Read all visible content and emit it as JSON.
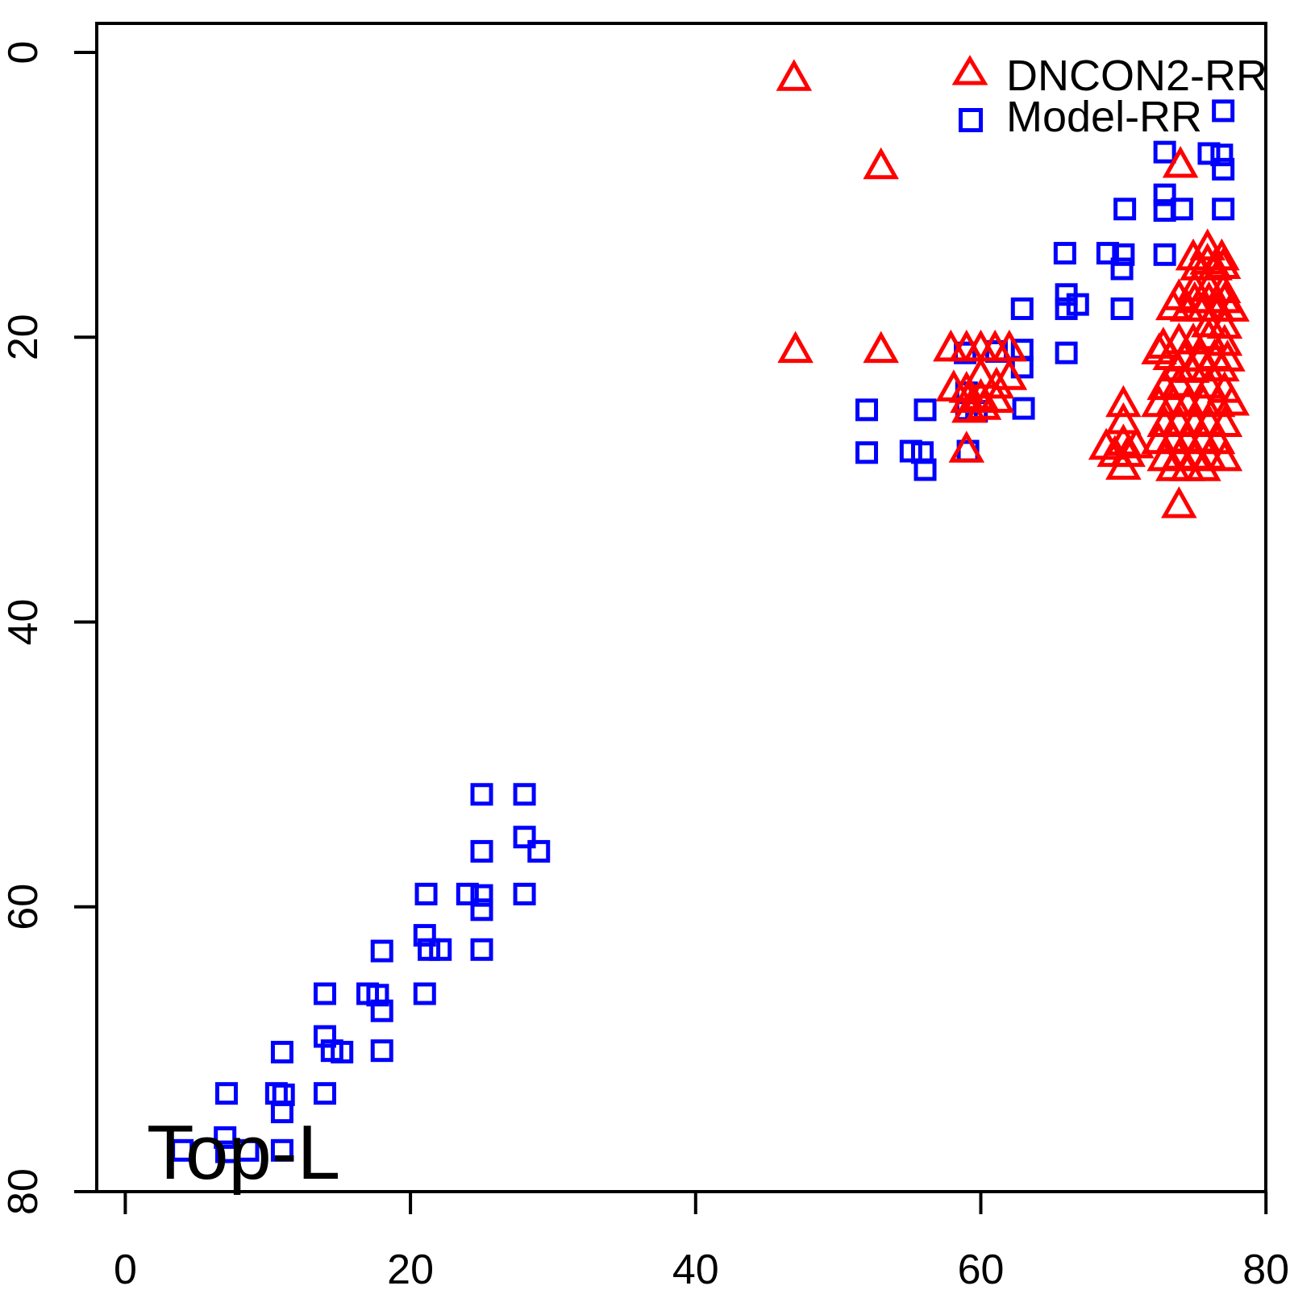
{
  "chart_data": {
    "type": "scatter",
    "title": "",
    "xlabel": "",
    "ylabel": "",
    "annotation": {
      "text": "Top-L"
    },
    "xlim": [
      0,
      80
    ],
    "ylim": [
      0,
      80
    ],
    "y_axis_reversed": true,
    "grid": false,
    "x_ticks": [
      "0",
      "20",
      "40",
      "60",
      "80"
    ],
    "x_tick_values": [
      0,
      20,
      40,
      60,
      80
    ],
    "y_ticks": [
      "0",
      "20",
      "40",
      "60",
      "80"
    ],
    "y_tick_values": [
      0,
      20,
      40,
      60,
      80
    ],
    "legend_position": "top-right",
    "series": [
      {
        "name": "DNCON2-RR",
        "marker": "open-triangle",
        "color": "#FF0000",
        "points": [
          [
            46.9,
            1.8
          ],
          [
            53.0,
            8.0
          ],
          [
            74.0,
            7.9
          ],
          [
            75.9,
            13.7
          ],
          [
            74.9,
            14.4
          ],
          [
            76.9,
            14.4
          ],
          [
            75.9,
            14.7
          ],
          [
            75.2,
            15.1
          ],
          [
            76.4,
            15.1
          ],
          [
            77.0,
            15.0
          ],
          [
            75.0,
            16.6
          ],
          [
            76.0,
            16.5
          ],
          [
            77.0,
            16.7
          ],
          [
            73.9,
            17.2
          ],
          [
            75.0,
            17.4
          ],
          [
            76.0,
            17.4
          ],
          [
            77.1,
            17.4
          ],
          [
            73.5,
            17.9
          ],
          [
            74.5,
            18.0
          ],
          [
            75.6,
            18.0
          ],
          [
            76.6,
            18.0
          ],
          [
            77.6,
            18.0
          ],
          [
            76.0,
            19.1
          ],
          [
            77.1,
            19.2
          ],
          [
            47.0,
            20.9
          ],
          [
            53.0,
            20.9
          ],
          [
            57.9,
            20.8
          ],
          [
            59.0,
            20.8
          ],
          [
            60.0,
            20.8
          ],
          [
            61.0,
            20.8
          ],
          [
            62.0,
            20.8
          ],
          [
            76.0,
            20.0
          ],
          [
            72.8,
            20.6
          ],
          [
            73.9,
            20.3
          ],
          [
            74.9,
            20.3
          ],
          [
            77.1,
            20.4
          ],
          [
            72.5,
            21.0
          ],
          [
            73.3,
            21.4
          ],
          [
            74.3,
            21.5
          ],
          [
            75.4,
            21.5
          ],
          [
            76.4,
            21.4
          ],
          [
            77.3,
            21.5
          ],
          [
            73.8,
            22.2
          ],
          [
            74.8,
            22.3
          ],
          [
            75.9,
            22.2
          ],
          [
            76.9,
            22.2
          ],
          [
            60.0,
            22.7
          ],
          [
            62.0,
            22.8
          ],
          [
            61.1,
            23.4
          ],
          [
            58.1,
            23.6
          ],
          [
            59.0,
            23.7
          ],
          [
            60.0,
            24.2
          ],
          [
            59.1,
            24.4
          ],
          [
            61.1,
            24.4
          ],
          [
            60.2,
            24.9
          ],
          [
            59.2,
            25.1
          ],
          [
            72.9,
            23.5
          ],
          [
            73.9,
            23.3
          ],
          [
            76.0,
            23.4
          ],
          [
            77.1,
            23.7
          ],
          [
            70.0,
            24.7
          ],
          [
            72.5,
            24.7
          ],
          [
            73.5,
            24.6
          ],
          [
            74.5,
            24.7
          ],
          [
            75.6,
            24.6
          ],
          [
            76.6,
            24.7
          ],
          [
            77.6,
            24.6
          ],
          [
            70.0,
            25.9
          ],
          [
            72.9,
            26.1
          ],
          [
            73.9,
            26.0
          ],
          [
            75.0,
            26.1
          ],
          [
            76.0,
            26.0
          ],
          [
            77.1,
            26.1
          ],
          [
            70.0,
            27.4
          ],
          [
            68.8,
            27.7
          ],
          [
            70.9,
            27.6
          ],
          [
            69.4,
            28.2
          ],
          [
            70.3,
            28.2
          ],
          [
            70.0,
            29.1
          ],
          [
            59.0,
            27.9
          ],
          [
            72.5,
            27.3
          ],
          [
            73.5,
            27.2
          ],
          [
            74.5,
            27.3
          ],
          [
            75.6,
            27.2
          ],
          [
            76.6,
            27.3
          ],
          [
            72.9,
            28.5
          ],
          [
            73.9,
            28.4
          ],
          [
            75.0,
            28.5
          ],
          [
            76.0,
            28.4
          ],
          [
            77.1,
            28.5
          ],
          [
            73.5,
            29.2
          ],
          [
            74.5,
            29.2
          ],
          [
            75.6,
            29.2
          ],
          [
            73.9,
            31.8
          ]
        ]
      },
      {
        "name": "Model-RR",
        "marker": "open-square",
        "color": "#0000FF",
        "points": [
          [
            77.0,
            4.1
          ],
          [
            72.9,
            7.0
          ],
          [
            76.0,
            7.1
          ],
          [
            76.9,
            7.2
          ],
          [
            77.0,
            8.2
          ],
          [
            72.9,
            10.0
          ],
          [
            70.1,
            11.0
          ],
          [
            72.9,
            11.1
          ],
          [
            74.1,
            11.0
          ],
          [
            77.0,
            11.0
          ],
          [
            65.9,
            14.1
          ],
          [
            68.9,
            14.1
          ],
          [
            70.0,
            14.2
          ],
          [
            72.9,
            14.2
          ],
          [
            69.9,
            15.2
          ],
          [
            66.0,
            17.0
          ],
          [
            66.8,
            17.7
          ],
          [
            66.0,
            18.0
          ],
          [
            69.9,
            18.0
          ],
          [
            62.9,
            18.0
          ],
          [
            58.9,
            21.1
          ],
          [
            61.1,
            21.0
          ],
          [
            62.9,
            20.9
          ],
          [
            66.0,
            21.1
          ],
          [
            62.9,
            22.1
          ],
          [
            59.0,
            23.9
          ],
          [
            52.0,
            25.1
          ],
          [
            56.1,
            25.1
          ],
          [
            59.0,
            25.1
          ],
          [
            59.7,
            25.2
          ],
          [
            63.0,
            25.0
          ],
          [
            52.0,
            28.1
          ],
          [
            55.1,
            28.0
          ],
          [
            55.9,
            28.1
          ],
          [
            59.1,
            28.0
          ],
          [
            56.1,
            29.3
          ],
          [
            25.0,
            52.1
          ],
          [
            28.0,
            52.1
          ],
          [
            28.0,
            55.1
          ],
          [
            25.0,
            56.1
          ],
          [
            29.0,
            56.1
          ],
          [
            21.1,
            59.1
          ],
          [
            24.0,
            59.1
          ],
          [
            25.0,
            59.2
          ],
          [
            28.0,
            59.1
          ],
          [
            25.0,
            60.2
          ],
          [
            21.0,
            62.0
          ],
          [
            18.0,
            63.1
          ],
          [
            21.3,
            63.0
          ],
          [
            22.1,
            63.0
          ],
          [
            25.0,
            63.0
          ],
          [
            14.0,
            66.1
          ],
          [
            17.0,
            66.1
          ],
          [
            17.7,
            66.2
          ],
          [
            21.0,
            66.1
          ],
          [
            18.0,
            67.3
          ],
          [
            14.0,
            69.1
          ],
          [
            11.0,
            70.2
          ],
          [
            14.5,
            70.1
          ],
          [
            15.2,
            70.2
          ],
          [
            18.0,
            70.1
          ],
          [
            7.1,
            73.1
          ],
          [
            10.6,
            73.1
          ],
          [
            11.1,
            73.2
          ],
          [
            14.0,
            73.1
          ],
          [
            11.0,
            74.4
          ],
          [
            7.0,
            76.2
          ],
          [
            4.0,
            77.1
          ],
          [
            7.1,
            77.2
          ],
          [
            8.6,
            77.1
          ],
          [
            11.0,
            77.1
          ]
        ]
      }
    ]
  }
}
